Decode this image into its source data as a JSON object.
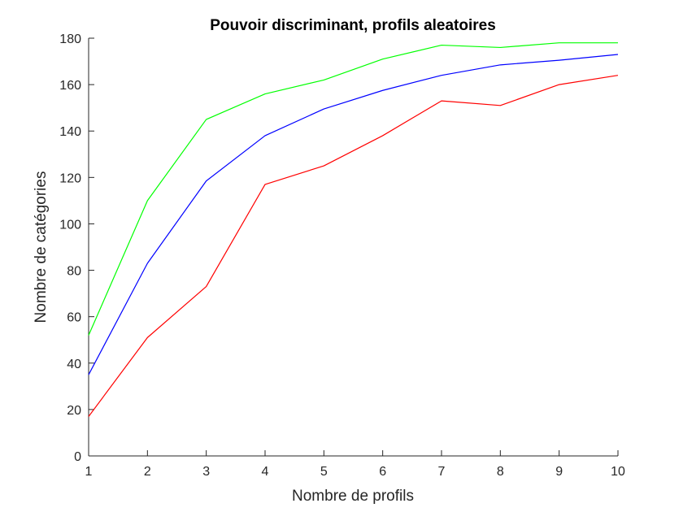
{
  "chart_data": {
    "type": "line",
    "title": "Pouvoir discriminant, profils aleatoires",
    "xlabel": "Nombre de profils",
    "ylabel": "Nombre de catégories",
    "x": [
      1,
      2,
      3,
      4,
      5,
      6,
      7,
      8,
      9,
      10
    ],
    "xlim": [
      1,
      10
    ],
    "ylim": [
      0,
      180
    ],
    "xticks": [
      "1",
      "2",
      "3",
      "4",
      "5",
      "6",
      "7",
      "8",
      "9",
      "10"
    ],
    "yticks": [
      "0",
      "20",
      "40",
      "60",
      "80",
      "100",
      "120",
      "140",
      "160",
      "180"
    ],
    "grid": false,
    "legend": "none",
    "series": [
      {
        "color": "#00ff00",
        "values": [
          52,
          110,
          145,
          156,
          162,
          171,
          177,
          176,
          178,
          178
        ]
      },
      {
        "color": "#0000ff",
        "values": [
          35,
          83,
          118.5,
          138,
          149.5,
          157.5,
          164,
          168.5,
          170.5,
          173
        ]
      },
      {
        "color": "#ff0000",
        "values": [
          17,
          51,
          73,
          117,
          125,
          138,
          153,
          151,
          160,
          164
        ]
      }
    ]
  }
}
